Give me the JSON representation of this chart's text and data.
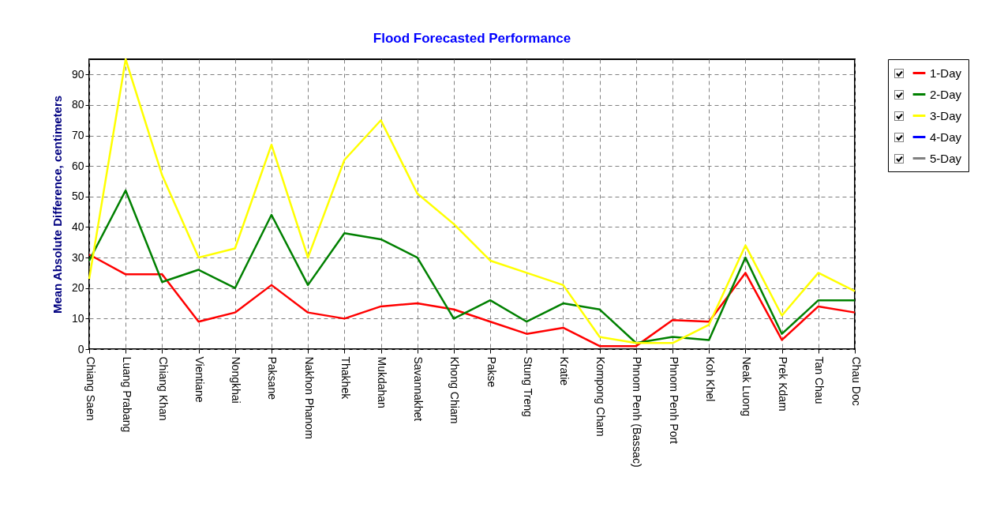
{
  "chart_data": {
    "type": "line",
    "title": "Flood Forecasted Performance",
    "ylabel": "Mean Absolute Difference, centimeters",
    "categories": [
      "Chiang Saen",
      "Luang Prabang",
      "Chiang Khan",
      "Vientiane",
      "Nongkhai",
      "Paksane",
      "Nakhon Phanom",
      "Thakhek",
      "Mukdahan",
      "Savannakhet",
      "Khong Chiam",
      "Pakse",
      "Stung Treng",
      "Kratie",
      "Kompong Cham",
      "Phnom Penh (Bassac)",
      "Phnom Penh Port",
      "Koh Khel",
      "Neak Luong",
      "Prek Kdam",
      "Tan Chau",
      "Chau Doc"
    ],
    "series": [
      {
        "name": "1-Day",
        "color": "#ff0000",
        "values": [
          31,
          24.5,
          24.5,
          9,
          12,
          21,
          12,
          10,
          14,
          15,
          13,
          9,
          5,
          7,
          1,
          1,
          9.5,
          9,
          25,
          3,
          14,
          12
        ]
      },
      {
        "name": "2-Day",
        "color": "#008000",
        "values": [
          29,
          52,
          22,
          26,
          20,
          44,
          21,
          38,
          36,
          30,
          10,
          16,
          9,
          15,
          13,
          2,
          4,
          3,
          30,
          5,
          16,
          16
        ]
      },
      {
        "name": "3-Day",
        "color": "#ffff00",
        "values": [
          23,
          95,
          57,
          30,
          33,
          67,
          30,
          62,
          75,
          51,
          41,
          29,
          25,
          21,
          4,
          2,
          2,
          8,
          34,
          11,
          25,
          19
        ]
      },
      {
        "name": "4-Day",
        "color": "#0000ff",
        "values": [
          null,
          null,
          null,
          null,
          null,
          null,
          null,
          null,
          null,
          null,
          null,
          null,
          null,
          null,
          null,
          null,
          null,
          null,
          null,
          null,
          null,
          null
        ]
      },
      {
        "name": "5-Day",
        "color": "#808080",
        "values": [
          null,
          null,
          null,
          null,
          null,
          null,
          null,
          null,
          null,
          null,
          null,
          null,
          null,
          null,
          null,
          null,
          null,
          null,
          null,
          null,
          null,
          null
        ]
      }
    ],
    "ylim": [
      0,
      95
    ],
    "yticks": [
      0,
      10,
      20,
      30,
      40,
      50,
      60,
      70,
      80,
      90
    ],
    "grid": true,
    "legend": "right",
    "line_style": "solid",
    "marker": "none"
  }
}
